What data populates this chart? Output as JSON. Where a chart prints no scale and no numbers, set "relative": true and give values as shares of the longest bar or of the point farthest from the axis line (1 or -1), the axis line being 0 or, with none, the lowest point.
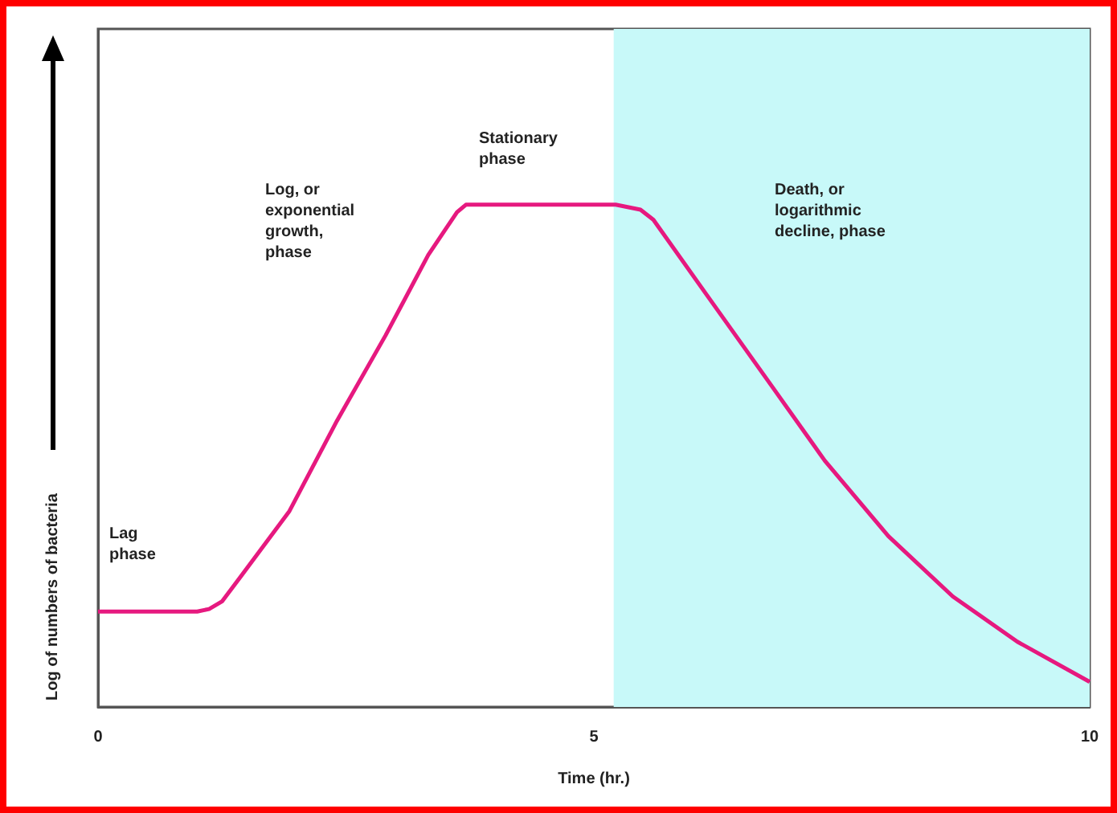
{
  "chart_data": {
    "type": "line",
    "relative": true,
    "xlabel": "Time (hr.)",
    "ylabel": "Log of numbers of bacteria",
    "xlim": [
      0,
      10
    ],
    "xticks": [
      0,
      5,
      10
    ],
    "grid": false,
    "marker": "none",
    "line_style": "solid",
    "series": [
      {
        "color": "#e6197f",
        "x": [
          0,
          1.0,
          1.12,
          1.25,
          1.44,
          1.93,
          2.41,
          2.9,
          3.33,
          3.5,
          3.62,
          3.71,
          5.22,
          5.35,
          5.47,
          5.6,
          6.14,
          6.79,
          7.33,
          7.97,
          8.62,
          9.27,
          10
        ],
        "values": [
          0.19,
          0.19,
          0.195,
          0.21,
          0.26,
          0.39,
          0.57,
          0.74,
          0.9,
          0.95,
          0.985,
          1,
          1,
          0.995,
          0.99,
          0.97,
          0.82,
          0.64,
          0.49,
          0.34,
          0.22,
          0.13,
          0.05
        ]
      }
    ],
    "bands": [
      {
        "axis": "x",
        "from": 5.2,
        "to": 10,
        "color": "#c8f9f9"
      }
    ],
    "annotations": [
      "Lag\nphase",
      "Log, or\nexponential\ngrowth,\nphase",
      "Stationary\nphase",
      "Death, or\nlogarithmic\ndecline, phase"
    ]
  }
}
